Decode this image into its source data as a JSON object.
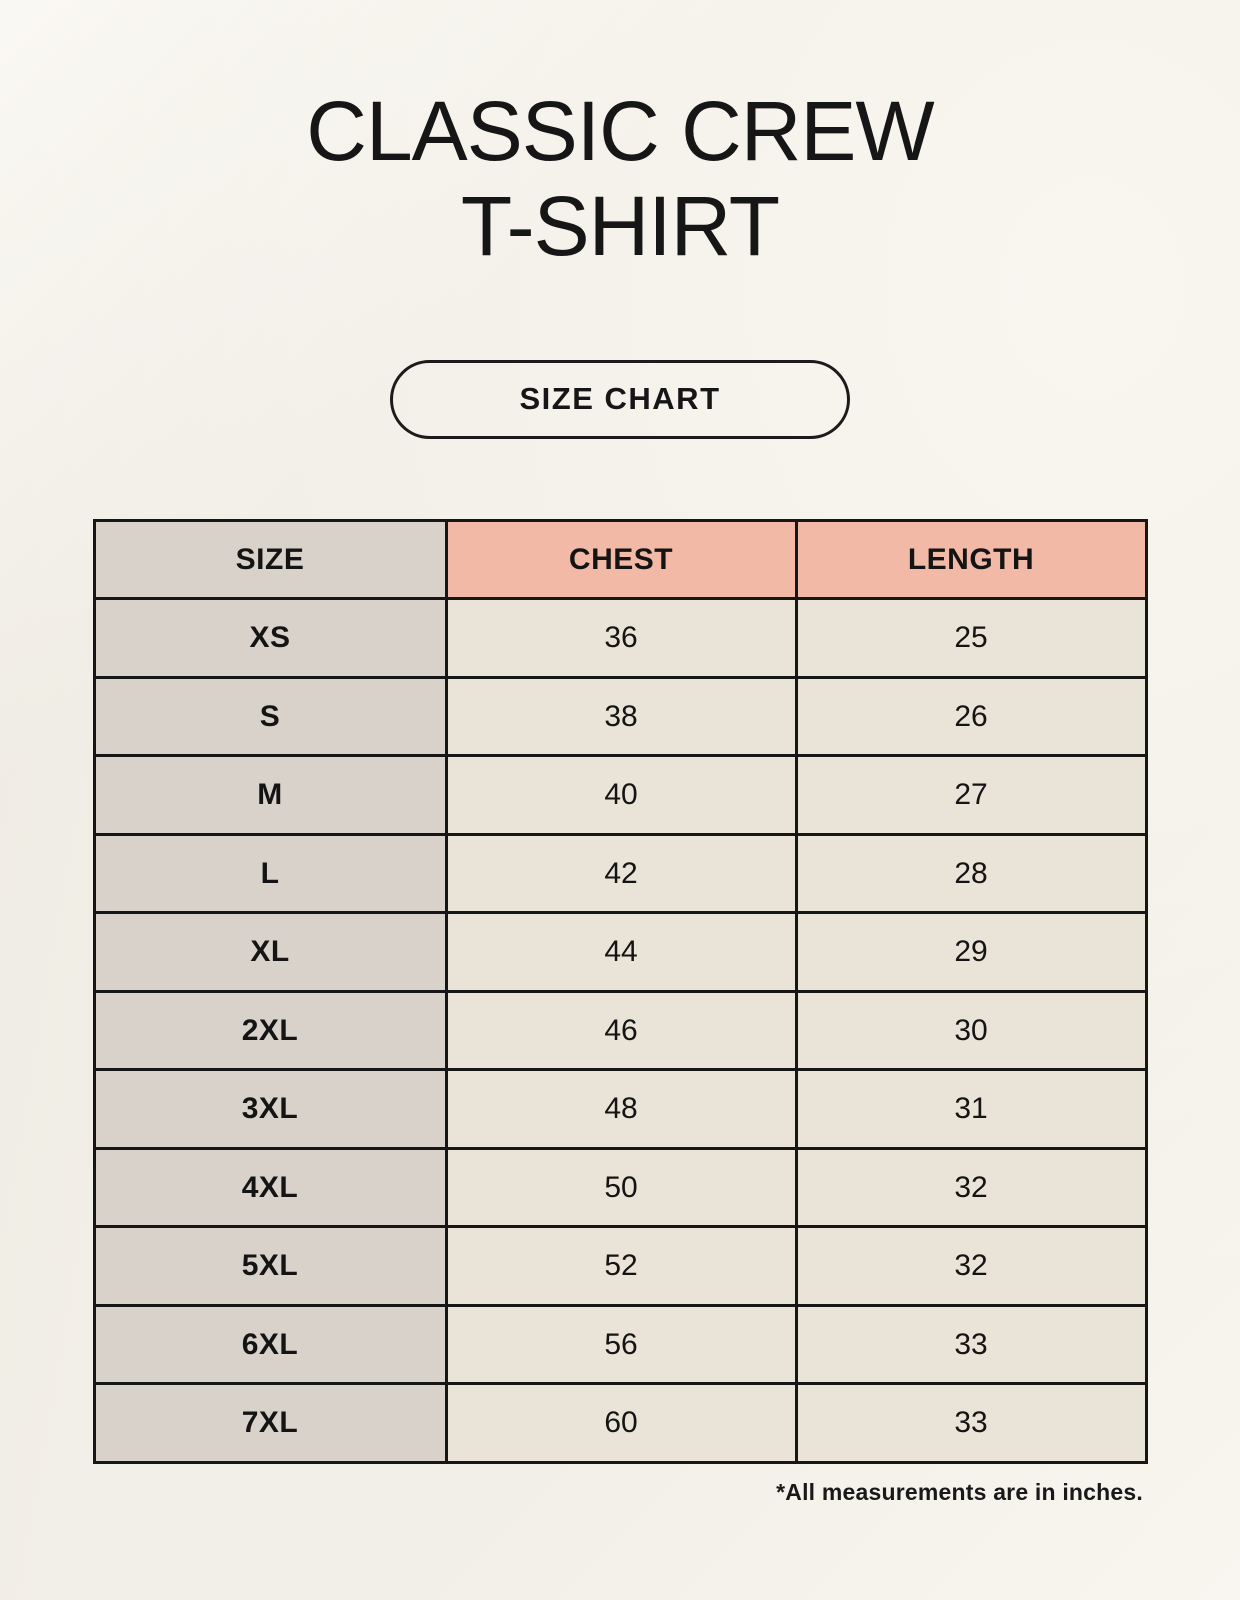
{
  "page": {
    "title_line1": "CLASSIC CREW",
    "title_line2": "T-SHIRT",
    "button_label": "SIZE CHART",
    "footnote": "*All measurements are in inches."
  },
  "colors": {
    "background": "#f2efe8",
    "header_pink": "#f1b9a6",
    "size_column_gray": "#d9d2cb",
    "value_cell_beige": "#eae3d8",
    "border": "#161616",
    "text": "#141414"
  },
  "table": {
    "headers": [
      "SIZE",
      "CHEST",
      "LENGTH"
    ],
    "rows": [
      {
        "size": "XS",
        "chest": "36",
        "length": "25"
      },
      {
        "size": "S",
        "chest": "38",
        "length": "26"
      },
      {
        "size": "M",
        "chest": "40",
        "length": "27"
      },
      {
        "size": "L",
        "chest": "42",
        "length": "28"
      },
      {
        "size": "XL",
        "chest": "44",
        "length": "29"
      },
      {
        "size": "2XL",
        "chest": "46",
        "length": "30"
      },
      {
        "size": "3XL",
        "chest": "48",
        "length": "31"
      },
      {
        "size": "4XL",
        "chest": "50",
        "length": "32"
      },
      {
        "size": "5XL",
        "chest": "52",
        "length": "32"
      },
      {
        "size": "6XL",
        "chest": "56",
        "length": "33"
      },
      {
        "size": "7XL",
        "chest": "60",
        "length": "33"
      }
    ]
  }
}
